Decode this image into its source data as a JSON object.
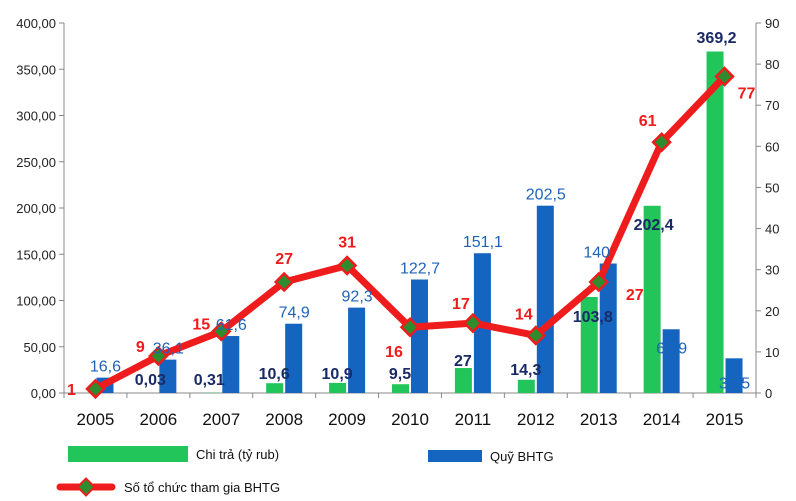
{
  "chart_data": {
    "type": "bar",
    "categories": [
      "2005",
      "2006",
      "2007",
      "2008",
      "2009",
      "2010",
      "2011",
      "2012",
      "2013",
      "2014",
      "2015"
    ],
    "ylim_left": [
      0,
      400
    ],
    "ylim_right": [
      0,
      90
    ],
    "y_left_ticks": [
      "0,00",
      "50,00",
      "100,00",
      "150,00",
      "200,00",
      "250,00",
      "300,00",
      "350,00",
      "400,00"
    ],
    "y_right_ticks": [
      "0",
      "10",
      "20",
      "30",
      "40",
      "50",
      "60",
      "70",
      "80",
      "90"
    ],
    "grid": false,
    "legend_position": "bottom",
    "series": [
      {
        "name": "Chi trả (tỷ rub)",
        "type": "bar",
        "axis": "left",
        "color": "#22c55a",
        "values": [
          0,
          0.03,
          0.31,
          10.6,
          10.9,
          9.5,
          27,
          14.3,
          103.8,
          202.4,
          369.2
        ],
        "labels": [
          "",
          "0,03",
          "0,31",
          "10,6",
          "10,9",
          "9,5",
          "27",
          "14,3",
          "103,8",
          "202,4",
          "369,2"
        ]
      },
      {
        "name": "Quỹ BHTG",
        "type": "bar",
        "axis": "left",
        "color": "#1565c0",
        "values": [
          16.6,
          36.1,
          61.6,
          74.9,
          92.3,
          122.7,
          151.1,
          202.5,
          140,
          68.9,
          37.5
        ],
        "labels": [
          "16,6",
          "36,1",
          "61,6",
          "74,9",
          "92,3",
          "122,7",
          "151,1",
          "202,5",
          "140",
          "68,9",
          "37,5"
        ]
      },
      {
        "name": "Số tổ chức tham gia BHTG",
        "type": "line",
        "axis": "right",
        "color": "#ee1c1c",
        "marker_color": "#2e8b2e",
        "values": [
          1,
          9,
          15,
          27,
          31,
          16,
          17,
          14,
          27,
          61,
          77
        ],
        "labels": [
          "1",
          "9",
          "15",
          "27",
          "31",
          "16",
          "17",
          "14",
          "27",
          "61",
          "77"
        ]
      }
    ]
  }
}
